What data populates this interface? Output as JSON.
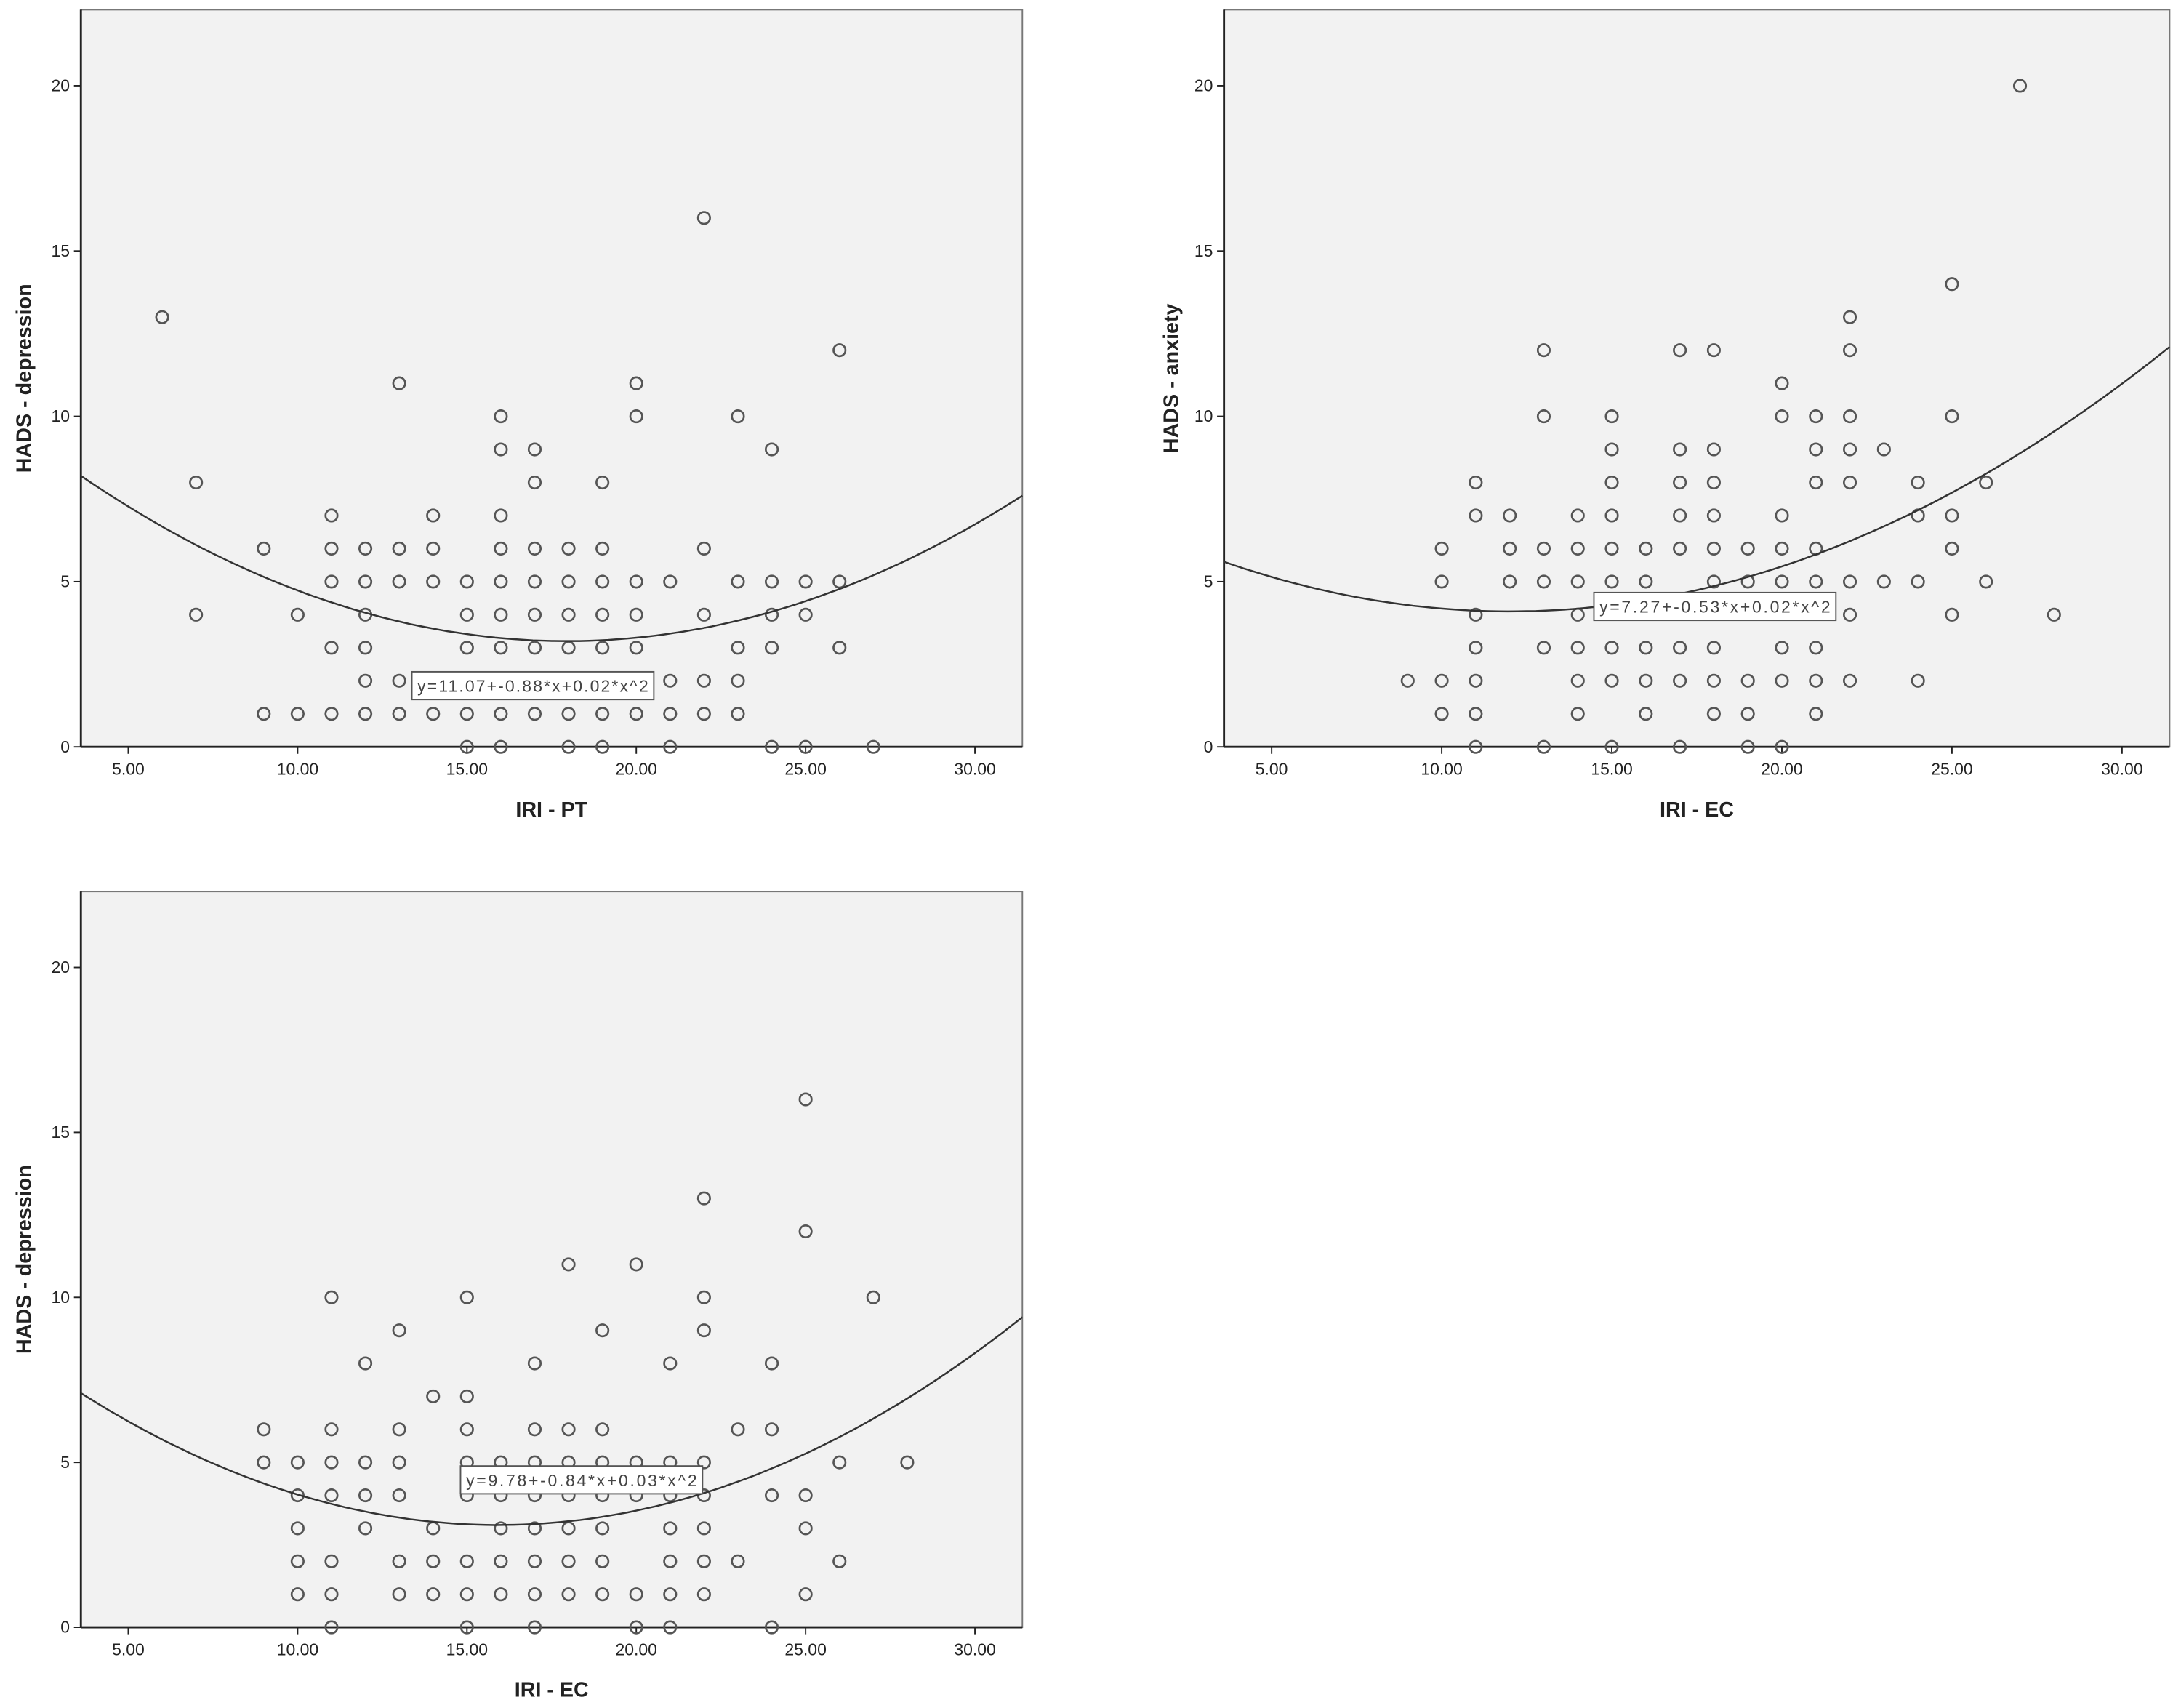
{
  "chart_data": [
    {
      "type": "scatter",
      "xlabel": "IRI - PT",
      "ylabel": "HADS - depression",
      "xlim": [
        3.6,
        31.4
      ],
      "ylim": [
        0,
        22.3
      ],
      "xticks": [
        "5.00",
        "10.00",
        "15.00",
        "20.00",
        "25.00",
        "30.00"
      ],
      "yticks": [
        "0",
        "5",
        "10",
        "15",
        "20"
      ],
      "grid": false,
      "fit_label": "y=11.07+-0.88*x+0.02*x^2",
      "fit_curve_points": [
        [
          3.6,
          8.2
        ],
        [
          18,
          3.2
        ],
        [
          31.4,
          7.6
        ]
      ],
      "columns": [
        {
          "x": 6,
          "y": [
            13
          ]
        },
        {
          "x": 7,
          "y": [
            8,
            4
          ]
        },
        {
          "x": 9,
          "y": [
            6,
            1
          ]
        },
        {
          "x": 10,
          "y": [
            4,
            1
          ]
        },
        {
          "x": 11,
          "y": [
            7,
            6,
            5,
            3,
            1
          ]
        },
        {
          "x": 12,
          "y": [
            6,
            5,
            4,
            3,
            2,
            1
          ]
        },
        {
          "x": 13,
          "y": [
            11,
            6,
            5,
            2,
            1
          ]
        },
        {
          "x": 14,
          "y": [
            7,
            6,
            5,
            1
          ]
        },
        {
          "x": 15,
          "y": [
            5,
            4,
            3,
            1,
            0
          ]
        },
        {
          "x": 16,
          "y": [
            10,
            9,
            7,
            6,
            5,
            4,
            3,
            1,
            0
          ]
        },
        {
          "x": 17,
          "y": [
            9,
            8,
            6,
            5,
            4,
            3,
            1
          ]
        },
        {
          "x": 18,
          "y": [
            6,
            5,
            4,
            3,
            1,
            0
          ]
        },
        {
          "x": 19,
          "y": [
            8,
            6,
            5,
            4,
            3,
            1,
            0
          ]
        },
        {
          "x": 20,
          "y": [
            11,
            10,
            5,
            4,
            3,
            1
          ]
        },
        {
          "x": 21,
          "y": [
            5,
            2,
            1,
            0
          ]
        },
        {
          "x": 22,
          "y": [
            16,
            6,
            4,
            2,
            1
          ]
        },
        {
          "x": 23,
          "y": [
            10,
            5,
            3,
            2,
            1
          ]
        },
        {
          "x": 24,
          "y": [
            9,
            5,
            4,
            3,
            0
          ]
        },
        {
          "x": 25,
          "y": [
            5,
            4,
            0
          ]
        },
        {
          "x": 26,
          "y": [
            12,
            5,
            3
          ]
        },
        {
          "x": 27,
          "y": [
            0
          ]
        }
      ]
    },
    {
      "type": "scatter",
      "xlabel": "IRI - EC",
      "ylabel": "HADS - anxiety",
      "xlim": [
        3.6,
        31.4
      ],
      "ylim": [
        0,
        22.3
      ],
      "xticks": [
        "5.00",
        "10.00",
        "15.00",
        "20.00",
        "25.00",
        "30.00"
      ],
      "yticks": [
        "0",
        "5",
        "10",
        "15",
        "20"
      ],
      "grid": false,
      "fit_label": "y=7.27+-0.53*x+0.02*x^2",
      "fit_curve_points": [
        [
          3.6,
          5.6
        ],
        [
          12,
          4.1
        ],
        [
          31.4,
          12.1
        ]
      ],
      "columns": [
        {
          "x": 9,
          "y": [
            2
          ]
        },
        {
          "x": 10,
          "y": [
            6,
            5,
            2,
            1
          ]
        },
        {
          "x": 11,
          "y": [
            8,
            7,
            4,
            3,
            2,
            1,
            0
          ]
        },
        {
          "x": 12,
          "y": [
            7,
            6,
            5
          ]
        },
        {
          "x": 13,
          "y": [
            12,
            10,
            6,
            5,
            3,
            0
          ]
        },
        {
          "x": 14,
          "y": [
            7,
            6,
            5,
            4,
            3,
            2,
            1
          ]
        },
        {
          "x": 15,
          "y": [
            10,
            9,
            8,
            7,
            6,
            5,
            3,
            2,
            0
          ]
        },
        {
          "x": 16,
          "y": [
            6,
            5,
            3,
            2,
            1
          ]
        },
        {
          "x": 17,
          "y": [
            12,
            9,
            8,
            7,
            6,
            3,
            2,
            0
          ]
        },
        {
          "x": 18,
          "y": [
            12,
            9,
            8,
            7,
            6,
            5,
            3,
            2,
            1
          ]
        },
        {
          "x": 19,
          "y": [
            6,
            5,
            2,
            1,
            0
          ]
        },
        {
          "x": 20,
          "y": [
            11,
            10,
            7,
            6,
            5,
            3,
            2,
            0
          ]
        },
        {
          "x": 21,
          "y": [
            10,
            9,
            8,
            6,
            5,
            3,
            2,
            1
          ]
        },
        {
          "x": 22,
          "y": [
            13,
            12,
            10,
            9,
            8,
            5,
            4,
            2
          ]
        },
        {
          "x": 23,
          "y": [
            9,
            5
          ]
        },
        {
          "x": 24,
          "y": [
            8,
            7,
            5,
            2
          ]
        },
        {
          "x": 25,
          "y": [
            14,
            10,
            7,
            6,
            4
          ]
        },
        {
          "x": 26,
          "y": [
            8,
            5
          ]
        },
        {
          "x": 27,
          "y": [
            20
          ]
        },
        {
          "x": 28,
          "y": [
            4
          ]
        }
      ]
    },
    {
      "type": "scatter",
      "xlabel": "IRI - EC",
      "ylabel": "HADS - depression",
      "xlim": [
        3.6,
        31.4
      ],
      "ylim": [
        0,
        22.3
      ],
      "xticks": [
        "5.00",
        "10.00",
        "15.00",
        "20.00",
        "25.00",
        "30.00"
      ],
      "yticks": [
        "0",
        "5",
        "10",
        "15",
        "20"
      ],
      "grid": false,
      "fit_label": "y=9.78+-0.84*x+0.03*x^2",
      "fit_curve_points": [
        [
          3.6,
          7.1
        ],
        [
          16,
          3.1
        ],
        [
          31.4,
          9.4
        ]
      ],
      "columns": [
        {
          "x": 9,
          "y": [
            6,
            5
          ]
        },
        {
          "x": 10,
          "y": [
            5,
            4,
            3,
            2,
            1
          ]
        },
        {
          "x": 11,
          "y": [
            10,
            6,
            5,
            4,
            2,
            1,
            0
          ]
        },
        {
          "x": 12,
          "y": [
            8,
            5,
            4,
            3
          ]
        },
        {
          "x": 13,
          "y": [
            9,
            6,
            5,
            4,
            2,
            1
          ]
        },
        {
          "x": 14,
          "y": [
            7,
            3,
            2,
            1
          ]
        },
        {
          "x": 15,
          "y": [
            10,
            7,
            6,
            5,
            4,
            2,
            1,
            0
          ]
        },
        {
          "x": 16,
          "y": [
            5,
            4,
            3,
            2,
            1
          ]
        },
        {
          "x": 17,
          "y": [
            8,
            6,
            5,
            4,
            3,
            2,
            1,
            0
          ]
        },
        {
          "x": 18,
          "y": [
            11,
            6,
            5,
            4,
            3,
            2,
            1
          ]
        },
        {
          "x": 19,
          "y": [
            9,
            6,
            5,
            4,
            3,
            2,
            1
          ]
        },
        {
          "x": 20,
          "y": [
            11,
            5,
            4,
            1,
            0
          ]
        },
        {
          "x": 21,
          "y": [
            8,
            5,
            4,
            3,
            2,
            1,
            0
          ]
        },
        {
          "x": 22,
          "y": [
            13,
            10,
            9,
            5,
            4,
            3,
            2,
            1
          ]
        },
        {
          "x": 23,
          "y": [
            6,
            2
          ]
        },
        {
          "x": 24,
          "y": [
            8,
            6,
            4,
            0
          ]
        },
        {
          "x": 25,
          "y": [
            16,
            12,
            4,
            3,
            1
          ]
        },
        {
          "x": 26,
          "y": [
            5,
            2
          ]
        },
        {
          "x": 27,
          "y": [
            10
          ]
        },
        {
          "x": 28,
          "y": [
            5
          ]
        }
      ]
    }
  ],
  "colors": {
    "plot_background": "#f2f2f2",
    "marker": "#555555",
    "fit_line": "#333333",
    "axis": "#222222"
  }
}
